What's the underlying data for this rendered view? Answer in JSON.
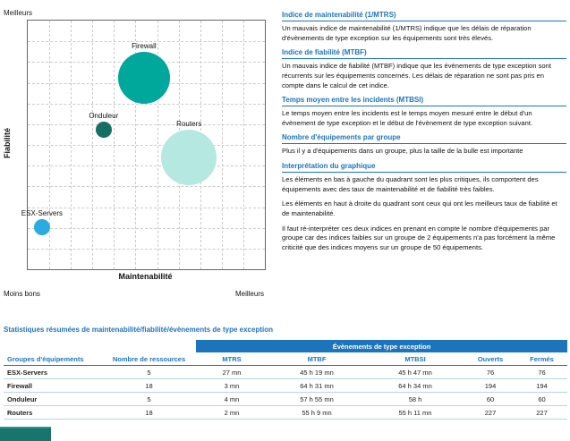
{
  "colors": {
    "accent_blue": "#1c75bc",
    "row_divider": "#b8d4ea",
    "footer_teal": "#17756d"
  },
  "chart": {
    "top_left_label": "Meilleurs",
    "bottom_left_label": "Moins bons",
    "bottom_right_label": "Meilleurs",
    "y_axis_label": "Fiabilité",
    "x_axis_label": "Maintenabilité"
  },
  "chart_data": {
    "type": "scatter",
    "title": "",
    "xlabel": "Maintenabilité",
    "ylabel": "Fiabilité",
    "grid": "dashed",
    "axis_annotations": {
      "top_left": "Meilleurs",
      "bottom_left": "Moins bons",
      "bottom_right": "Meilleurs"
    },
    "bubble_size_meaning": "Nombre d'équipements dans le groupe",
    "series": [
      {
        "name": "Firewall",
        "equipments": 18,
        "mtrs": "3 mn",
        "mtbf": "64 h 31 mn",
        "color": "#00a79b",
        "x_pct": 49,
        "y_pct": 23,
        "radius_px": 29
      },
      {
        "name": "Onduleur",
        "equipments": 5,
        "mtrs": "4 mn",
        "mtbf": "57 h 55 mn",
        "color": "#156f62",
        "x_pct": 32,
        "y_pct": 44,
        "radius_px": 9
      },
      {
        "name": "Routers",
        "equipments": 18,
        "mtrs": "2 mn",
        "mtbf": "55 h 9 mn",
        "color": "#b5e8e0",
        "x_pct": 68,
        "y_pct": 55,
        "radius_px": 31
      },
      {
        "name": "ESX-Servers",
        "equipments": 5,
        "mtrs": "27 mn",
        "mtbf": "45 h 19 mn",
        "color": "#2aabe2",
        "x_pct": 6,
        "y_pct": 83,
        "radius_px": 9
      }
    ]
  },
  "panel": {
    "sections": [
      {
        "title": "Indice de maintenabilité (1/MTRS)",
        "paragraphs": [
          "Un mauvais indice de maintenabilité (1/MTRS) indique que les délais de réparation d'évènements de type exception sur les équipements sont très élevés."
        ]
      },
      {
        "title": "Indice de fiabilité (MTBF)",
        "paragraphs": [
          "Un mauvais indice de fiabilité (MTBF) indique que les évènements de type exception sont récurrents sur les équipements concernés. Les délais de réparation ne sont pas pris en compte dans le calcul de cet indice."
        ]
      },
      {
        "title": "Temps moyen entre les incidents (MTBSI)",
        "paragraphs": [
          "Le temps moyen entre les incidents est le temps moyen mesuré entre le début d'un évènement de type exception et le début de l'évènement de type exception suivant."
        ]
      },
      {
        "title": "Nombre d'équipements par groupe",
        "paragraphs": [
          "Plus il y a d'équipements dans un groupe, plus la taille de la bulle est importante"
        ]
      },
      {
        "title": "Interprétation du graphique",
        "paragraphs": [
          "Les éléments en bas à gauche du quadrant sont les plus critiques, ils comportent des équipements avec des taux de maintenabilité et de fiabilité très faibles.",
          "Les éléments en haut à droite du quadrant sont ceux qui ont les meilleurs taux de fiabilité et de maintenabilité.",
          "Il faut ré-interpréter ces deux indices en prenant en compte le nombre d'équipements par groupe car des indices faibles sur un groupe de 2 équipements n'a pas forcément la même criticité que des indices moyens sur un groupe de 50 équipements."
        ]
      }
    ]
  },
  "table": {
    "title": "Statistiques résumées de maintenabilité/fiabilité/évènements de type exception",
    "group_header": "Évènements de type exception",
    "columns": [
      "Groupes d'équipements",
      "Nombre de ressources",
      "MTRS",
      "MTBF",
      "MTBSI",
      "Ouverts",
      "Fermés"
    ],
    "rows": [
      [
        "ESX-Servers",
        "5",
        "27 mn",
        "45 h 19 mn",
        "45 h 47 mn",
        "76",
        "76"
      ],
      [
        "Firewall",
        "18",
        "3 mn",
        "64 h 31 mn",
        "64 h 34 mn",
        "194",
        "194"
      ],
      [
        "Onduleur",
        "5",
        "4 mn",
        "57 h 55 mn",
        "58 h",
        "60",
        "60"
      ],
      [
        "Routers",
        "18",
        "2 mn",
        "55 h 9 mn",
        "55 h 11 mn",
        "227",
        "227"
      ]
    ]
  }
}
